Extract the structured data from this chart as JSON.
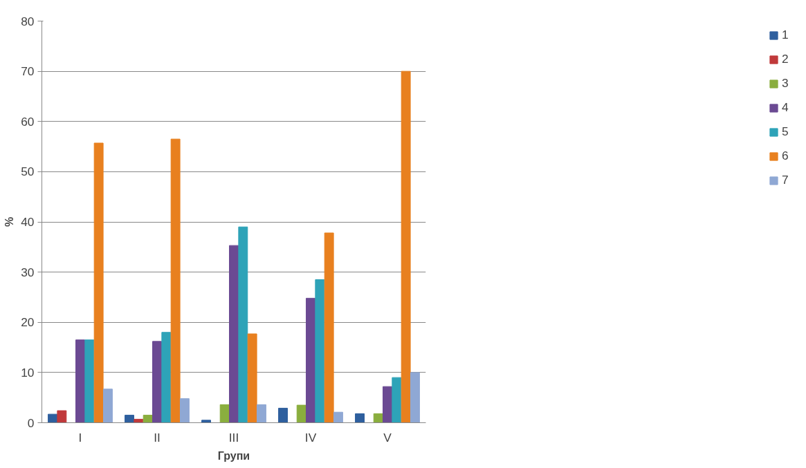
{
  "chart_data": {
    "type": "bar",
    "xlabel": "Групи",
    "ylabel": "%",
    "categories": [
      "I",
      "II",
      "III",
      "IV",
      "V"
    ],
    "series": [
      {
        "name": "1",
        "color": "#2e5f9e",
        "values": [
          1.7,
          1.5,
          0.5,
          2.9,
          1.8
        ]
      },
      {
        "name": "2",
        "color": "#c0393b",
        "values": [
          2.4,
          0.7,
          0,
          0,
          0
        ]
      },
      {
        "name": "3",
        "color": "#8aae3e",
        "values": [
          0,
          1.5,
          3.6,
          3.5,
          1.8
        ]
      },
      {
        "name": "4",
        "color": "#6b4a93",
        "values": [
          16.5,
          16.2,
          35.3,
          24.8,
          7.2
        ]
      },
      {
        "name": "5",
        "color": "#2ea3b8",
        "values": [
          16.5,
          18,
          39,
          28.5,
          9
        ]
      },
      {
        "name": "6",
        "color": "#e8801f",
        "values": [
          55.7,
          56.5,
          17.7,
          37.8,
          70
        ]
      },
      {
        "name": "7",
        "color": "#8fa8d4",
        "values": [
          6.7,
          4.8,
          3.6,
          2.1,
          10
        ]
      }
    ],
    "ylim": [
      0,
      80
    ],
    "yticks": [
      0,
      10,
      20,
      30,
      40,
      50,
      60,
      70,
      80
    ],
    "grid": "y",
    "legend": "right"
  }
}
